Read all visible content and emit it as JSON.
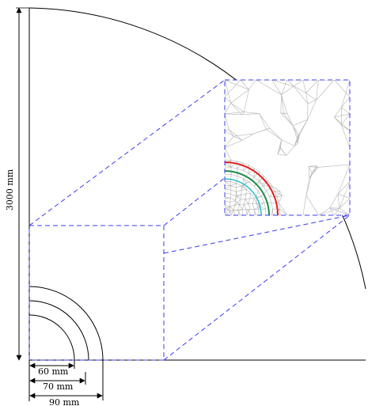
{
  "labels": {
    "height_dim": "3000 mm",
    "r60": "60 mm",
    "r70": "70 mm",
    "r90": "90 mm"
  },
  "colors": {
    "outline": "#000000",
    "dashed_box": "#3c3cf0",
    "mesh": "#b4b4b4",
    "ring_red": "#e02020",
    "ring_green": "#1e8c4a",
    "ring_cyan": "#22c0c8"
  }
}
